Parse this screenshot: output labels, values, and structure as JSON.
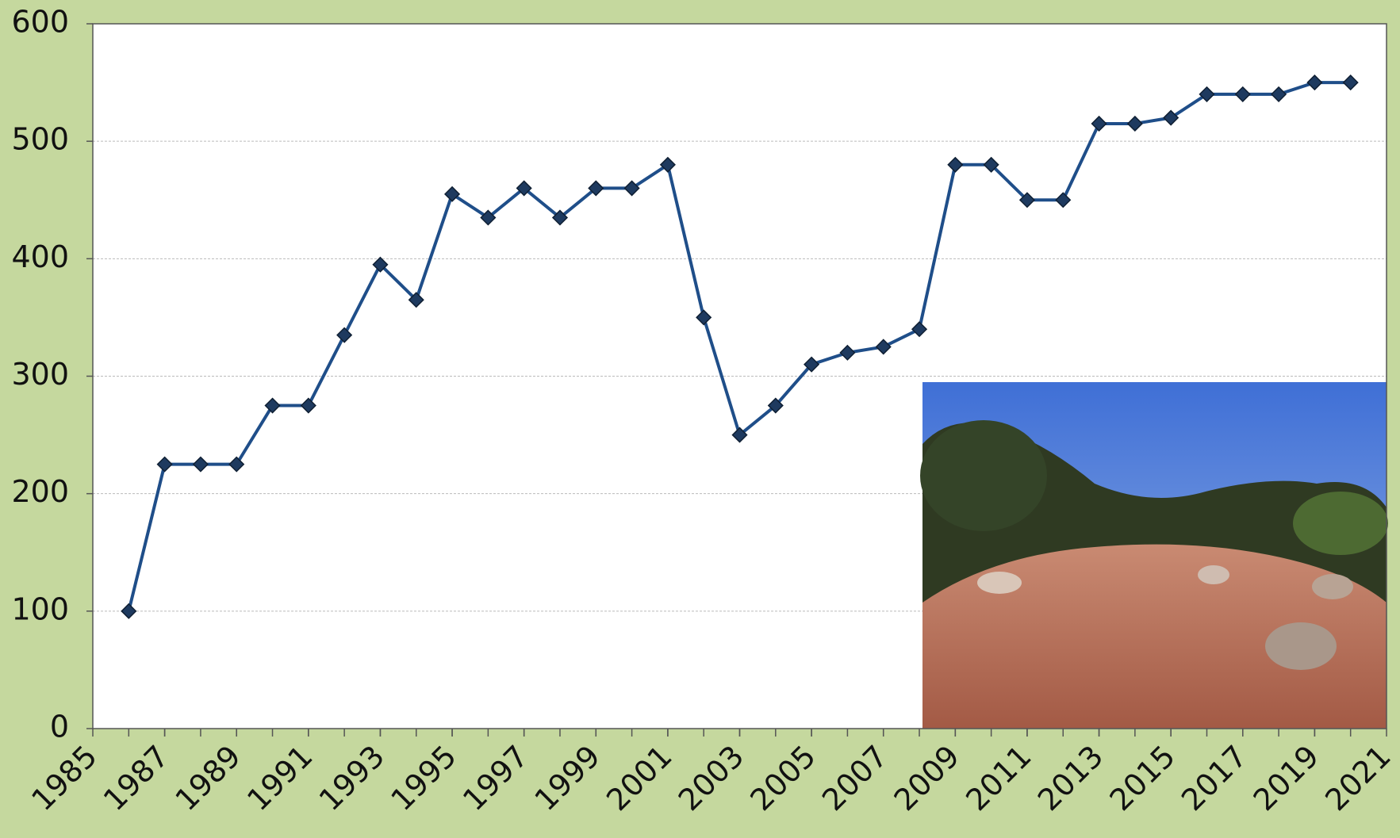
{
  "chart_data": {
    "type": "line",
    "x": [
      1986,
      1987,
      1988,
      1989,
      1990,
      1991,
      1992,
      1993,
      1994,
      1995,
      1996,
      1997,
      1998,
      1999,
      2000,
      2001,
      2002,
      2003,
      2004,
      2005,
      2006,
      2007,
      2008,
      2009,
      2010,
      2011,
      2012,
      2013,
      2014,
      2015,
      2016,
      2017,
      2018,
      2019,
      2020
    ],
    "series": [
      {
        "color": "#1f4e89",
        "values": [
          100,
          225,
          225,
          225,
          275,
          275,
          335,
          395,
          365,
          455,
          435,
          460,
          435,
          460,
          460,
          480,
          350,
          250,
          275,
          310,
          320,
          325,
          340,
          480,
          480,
          450,
          450,
          515,
          515,
          520,
          540,
          540,
          540,
          550,
          550
        ]
      }
    ],
    "xlim": [
      1985,
      2021
    ],
    "xticks": [
      1985,
      1987,
      1989,
      1991,
      1993,
      1995,
      1997,
      1999,
      2001,
      2003,
      2005,
      2007,
      2009,
      2011,
      2013,
      2015,
      2017,
      2019,
      2021
    ],
    "ylim": [
      0,
      600
    ],
    "yticks": [
      0,
      100,
      200,
      300,
      400,
      500,
      600
    ],
    "grid": true
  }
}
